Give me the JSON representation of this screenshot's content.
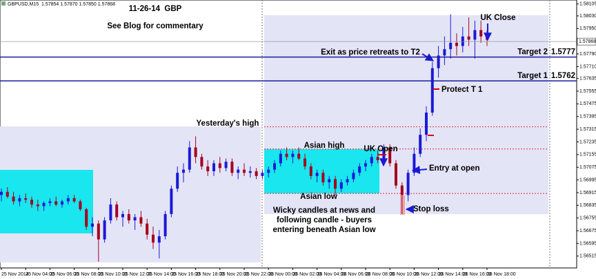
{
  "info_bar": "GBPUSD,M15  1.57854 1.57870 1.57850 1.57868",
  "chart_data": {
    "type": "candlestick",
    "title": "11-26-14  GBP",
    "subtitle": "See Blog for commentary",
    "open": [
      1.569,
      1.5692,
      1.5689,
      1.5686,
      1.5688,
      1.5687,
      1.5684,
      1.5683,
      1.5685,
      1.5686,
      1.5684,
      1.5686,
      1.5688,
      1.5686,
      1.5681,
      1.567,
      1.5672,
      1.5662,
      1.5674,
      1.5684,
      1.5676,
      1.5678,
      1.5674,
      1.5676,
      1.5672,
      1.5665,
      1.566,
      1.5664,
      1.5678,
      1.5694,
      1.5704,
      1.5706,
      1.572,
      1.5714,
      1.5708,
      1.5705,
      1.571,
      1.5707,
      1.5711,
      1.5704,
      1.5706,
      1.5704,
      1.5705,
      1.5702,
      1.5704,
      1.5706,
      1.571,
      1.5716,
      1.5714,
      1.5716,
      1.5713,
      1.5708,
      1.5702,
      1.5704,
      1.5698,
      1.57,
      1.5694,
      1.5698,
      1.57,
      1.5704,
      1.5708,
      1.571,
      1.5714,
      1.5712,
      1.572,
      1.571,
      1.5696,
      1.569,
      1.5704,
      1.5716,
      1.5728,
      1.5742,
      1.577,
      1.5778,
      1.5782,
      1.5786,
      1.5784,
      1.579,
      1.5788,
      1.5794,
      1.579
    ],
    "high": [
      1.5694,
      1.5695,
      1.5692,
      1.569,
      1.5691,
      1.5689,
      1.5687,
      1.5686,
      1.5688,
      1.5689,
      1.5687,
      1.569,
      1.569,
      1.5687,
      1.5682,
      1.5676,
      1.5674,
      1.5676,
      1.5688,
      1.5686,
      1.568,
      1.5681,
      1.5678,
      1.568,
      1.5675,
      1.567,
      1.5668,
      1.568,
      1.5696,
      1.5708,
      1.571,
      1.5724,
      1.5727,
      1.5716,
      1.5712,
      1.5712,
      1.5714,
      1.5713,
      1.5713,
      1.5708,
      1.571,
      1.5708,
      1.5707,
      1.5706,
      1.5708,
      1.5712,
      1.5718,
      1.572,
      1.5718,
      1.572,
      1.5716,
      1.571,
      1.5706,
      1.5706,
      1.5702,
      1.5702,
      1.57,
      1.5702,
      1.5706,
      1.571,
      1.5712,
      1.5716,
      1.5718,
      1.5722,
      1.5722,
      1.5712,
      1.5698,
      1.5706,
      1.572,
      1.5732,
      1.5746,
      1.5774,
      1.5784,
      1.579,
      1.5804,
      1.5792,
      1.5796,
      1.5802,
      1.58,
      1.58,
      1.5794
    ],
    "low": [
      1.5686,
      1.5688,
      1.5684,
      1.5683,
      1.5685,
      1.5682,
      1.568,
      1.568,
      1.5683,
      1.5683,
      1.5682,
      1.5684,
      1.5685,
      1.568,
      1.5668,
      1.5664,
      1.5648,
      1.566,
      1.5672,
      1.5674,
      1.567,
      1.5672,
      1.5668,
      1.567,
      1.5662,
      1.5656,
      1.565,
      1.5662,
      1.5676,
      1.5692,
      1.5698,
      1.5704,
      1.571,
      1.5706,
      1.5702,
      1.5702,
      1.5704,
      1.5705,
      1.5702,
      1.57,
      1.5702,
      1.5701,
      1.57,
      1.57,
      1.5701,
      1.5704,
      1.5708,
      1.5712,
      1.571,
      1.5712,
      1.5706,
      1.57,
      1.5698,
      1.5696,
      1.5694,
      1.569,
      1.5692,
      1.5696,
      1.5698,
      1.5702,
      1.5705,
      1.5708,
      1.571,
      1.571,
      1.5708,
      1.5694,
      1.5678,
      1.5686,
      1.5702,
      1.5714,
      1.5724,
      1.574,
      1.5764,
      1.5772,
      1.5776,
      1.5778,
      1.578,
      1.5784,
      1.5776,
      1.5786,
      1.5784
    ],
    "close": [
      1.5692,
      1.5689,
      1.5686,
      1.5688,
      1.5687,
      1.5684,
      1.5683,
      1.5685,
      1.5686,
      1.5684,
      1.5686,
      1.5688,
      1.5686,
      1.5681,
      1.567,
      1.5672,
      1.5662,
      1.5674,
      1.5684,
      1.5676,
      1.5678,
      1.5674,
      1.5676,
      1.5672,
      1.5665,
      1.566,
      1.5664,
      1.5678,
      1.5694,
      1.5704,
      1.5706,
      1.572,
      1.5714,
      1.5708,
      1.5705,
      1.571,
      1.5707,
      1.5711,
      1.5704,
      1.5706,
      1.5704,
      1.5705,
      1.5702,
      1.5704,
      1.5706,
      1.571,
      1.5716,
      1.5714,
      1.5716,
      1.5713,
      1.5708,
      1.5702,
      1.5704,
      1.5698,
      1.57,
      1.5694,
      1.5698,
      1.57,
      1.5704,
      1.5708,
      1.571,
      1.5714,
      1.5712,
      1.572,
      1.571,
      1.5696,
      1.569,
      1.5704,
      1.5716,
      1.5728,
      1.5742,
      1.577,
      1.5778,
      1.5782,
      1.5786,
      1.5784,
      1.579,
      1.5788,
      1.5794,
      1.579,
      1.5788
    ],
    "up_color": "#1a1ad6",
    "down_color": "#a3001c",
    "ylim": [
      1.5644,
      1.5813
    ],
    "yticks": [
      1.56515,
      1.56595,
      1.56675,
      1.56755,
      1.56835,
      1.56915,
      1.56995,
      1.57075,
      1.57155,
      1.57235,
      1.57315,
      1.57395,
      1.57475,
      1.57555,
      1.57635,
      {
        "value": 1.5771,
        "label": "1.57710"
      },
      {
        "value": 1.5779,
        "label": "1.57790"
      },
      {
        "value": 1.5795,
        "label": "1.57950"
      },
      {
        "value": 1.5803,
        "label": "1.58030"
      },
      1.58105
    ],
    "xticks": [
      {
        "value": 0,
        "label": "25 Nov 2014"
      },
      {
        "value": 4,
        "label": "25 Nov 04:00"
      },
      {
        "value": 8,
        "label": "25 Nov 06:00"
      },
      {
        "value": 12,
        "label": "25 Nov 08:00"
      },
      {
        "value": 16,
        "label": "25 Nov 10:00"
      },
      {
        "value": 20,
        "label": "25 Nov 12:00"
      },
      {
        "value": 24,
        "label": "25 Nov 14:00"
      },
      {
        "value": 28,
        "label": "25 Nov 16:00"
      },
      {
        "value": 32,
        "label": "25 Nov 18:00"
      },
      {
        "value": 36,
        "label": "25 Nov 20:00"
      },
      {
        "value": 40,
        "label": "25 Nov 22:00"
      },
      {
        "value": 44,
        "label": "26 Nov 00:00"
      },
      {
        "value": 48,
        "label": "26 Nov 02:00"
      },
      {
        "value": 52,
        "label": "26 Nov 04:00"
      },
      {
        "value": 56,
        "label": "26 Nov 06:00"
      },
      {
        "value": 60,
        "label": "26 Nov 08:00"
      },
      {
        "value": 64,
        "label": "26 Nov 10:00"
      },
      {
        "value": 68,
        "label": "26 Nov 12:00"
      },
      {
        "value": 72,
        "label": "26 Nov 14:00"
      },
      {
        "value": 76,
        "label": "26 Nov 16:00"
      },
      {
        "value": 80,
        "label": "26 Nov 18:00"
      }
    ],
    "current_price": 1.57868,
    "targets": [
      {
        "name": "Target 2",
        "value": 1.5777
      },
      {
        "name": "Target 1",
        "value": 1.5762
      }
    ],
    "levels": [
      1.5733,
      1.5719,
      1.5691
    ],
    "annotations": [
      "Yesterday's high",
      "Asian high",
      "UK Open",
      "Asian low",
      "Entry at open",
      "Wicky candles at news and",
      "following candle - buyers",
      "entering beneath Asian low",
      "Stop loss",
      "Protect T 1",
      "Exit as price retreats to T2",
      "UK Close"
    ]
  }
}
